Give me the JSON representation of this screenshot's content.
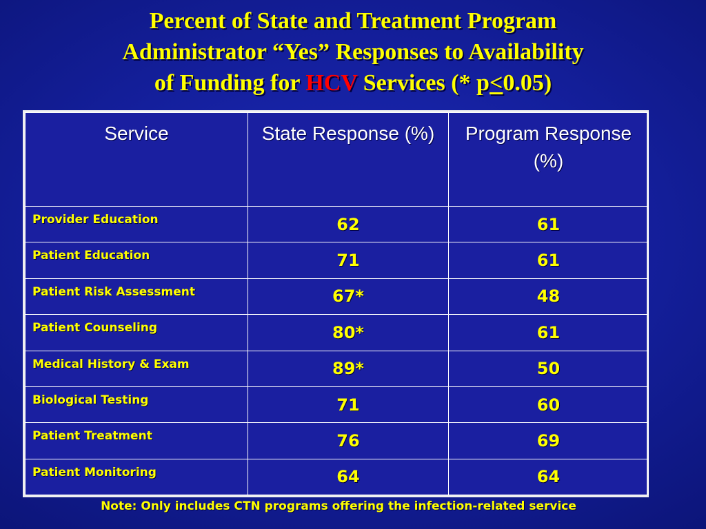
{
  "title": {
    "line1": "Percent of State and Treatment Program",
    "line2": "Administrator “Yes” Responses to Availability",
    "line3_prefix": "of Funding for ",
    "line3_highlight": "HCV",
    "line3_mid": " Services (* p",
    "line3_le": "<",
    "line3_suffix": "0.05)",
    "highlight_color": "#ff0000",
    "text_color": "#ffff00"
  },
  "table": {
    "headers": {
      "service": "Service",
      "state": "State Response (%)",
      "program": "Program Response (%)"
    },
    "rows": [
      {
        "service": "Provider Education",
        "state": "62",
        "program": "61"
      },
      {
        "service": "Patient Education",
        "state": "71",
        "program": "61"
      },
      {
        "service": "Patient Risk Assessment",
        "state": "67*",
        "program": "48"
      },
      {
        "service": "Patient Counseling",
        "state": "80*",
        "program": "61"
      },
      {
        "service": "Medical History & Exam",
        "state": "89*",
        "program": "50"
      },
      {
        "service": "Biological Testing",
        "state": "71",
        "program": "60"
      },
      {
        "service": "Patient Treatment",
        "state": "76",
        "program": "69"
      },
      {
        "service": "Patient Monitoring",
        "state": "64",
        "program": "64"
      }
    ]
  },
  "note": "Note: Only includes CTN programs offering the infection-related service"
}
